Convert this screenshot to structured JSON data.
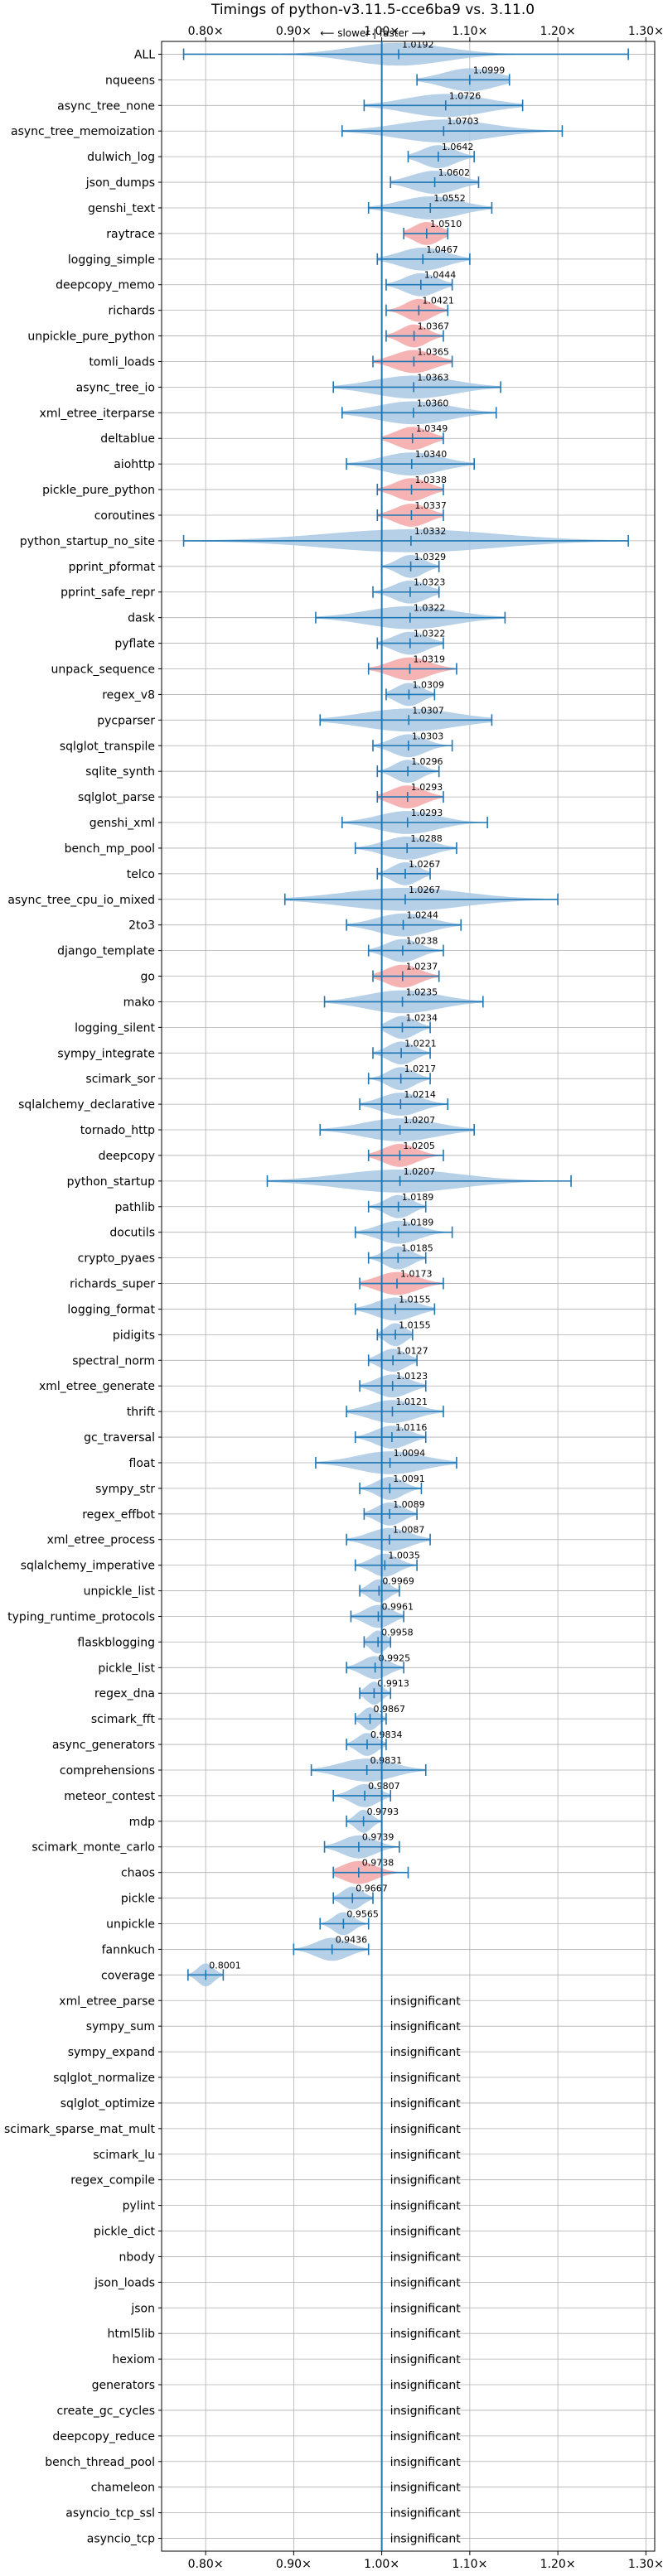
{
  "chart_data": {
    "type": "violin",
    "title": "Timings of python-v3.11.5-cce6ba9 vs. 3.11.0",
    "subtitle": "⟵ slower | faster ⟶",
    "xlabel": "",
    "ylabel": "",
    "xlim": [
      0.75,
      1.31
    ],
    "x_ticks": [
      0.8,
      0.9,
      1.0,
      1.1,
      1.2,
      1.3
    ],
    "x_tick_labels": [
      "0.80×",
      "0.90×",
      "1.00×",
      "1.10×",
      "1.20×",
      "1.30×"
    ],
    "reference_line": 1.0,
    "grid": true,
    "colors": {
      "faster": "#a9c8e4",
      "slower": "#f4a6a6",
      "line": "#1f77b4",
      "grid": "#b0b0b0"
    },
    "insignificant_label": "insignificant",
    "benchmarks": [
      {
        "name": "ALL",
        "value": 1.0192,
        "label": "1.0192",
        "min": 0.775,
        "max": 1.28,
        "spread": 0.07,
        "slower": false
      },
      {
        "name": "nqueens",
        "value": 1.0999,
        "label": "1.0999",
        "min": 1.04,
        "max": 1.145,
        "spread": 0.04,
        "slower": false
      },
      {
        "name": "async_tree_none",
        "value": 1.0726,
        "label": "1.0726",
        "min": 0.98,
        "max": 1.16,
        "spread": 0.06,
        "slower": false
      },
      {
        "name": "async_tree_memoization",
        "value": 1.0703,
        "label": "1.0703",
        "min": 0.955,
        "max": 1.205,
        "spread": 0.07,
        "slower": false
      },
      {
        "name": "dulwich_log",
        "value": 1.0642,
        "label": "1.0642",
        "min": 1.03,
        "max": 1.105,
        "spread": 0.025,
        "slower": false
      },
      {
        "name": "json_dumps",
        "value": 1.0602,
        "label": "1.0602",
        "min": 1.01,
        "max": 1.11,
        "spread": 0.035,
        "slower": false
      },
      {
        "name": "genshi_text",
        "value": 1.0552,
        "label": "1.0552",
        "min": 0.985,
        "max": 1.125,
        "spread": 0.045,
        "slower": false
      },
      {
        "name": "raytrace",
        "value": 1.051,
        "label": "1.0510",
        "min": 1.025,
        "max": 1.075,
        "spread": 0.02,
        "slower": true
      },
      {
        "name": "logging_simple",
        "value": 1.0467,
        "label": "1.0467",
        "min": 0.995,
        "max": 1.1,
        "spread": 0.035,
        "slower": false
      },
      {
        "name": "deepcopy_memo",
        "value": 1.0444,
        "label": "1.0444",
        "min": 1.005,
        "max": 1.08,
        "spread": 0.025,
        "slower": false
      },
      {
        "name": "richards",
        "value": 1.0421,
        "label": "1.0421",
        "min": 1.005,
        "max": 1.075,
        "spread": 0.02,
        "slower": true
      },
      {
        "name": "unpickle_pure_python",
        "value": 1.0367,
        "label": "1.0367",
        "min": 1.005,
        "max": 1.07,
        "spread": 0.02,
        "slower": true
      },
      {
        "name": "tomli_loads",
        "value": 1.0365,
        "label": "1.0365",
        "min": 0.99,
        "max": 1.08,
        "spread": 0.03,
        "slower": true
      },
      {
        "name": "async_tree_io",
        "value": 1.0363,
        "label": "1.0363",
        "min": 0.945,
        "max": 1.135,
        "spread": 0.06,
        "slower": false
      },
      {
        "name": "xml_etree_iterparse",
        "value": 1.036,
        "label": "1.0360",
        "min": 0.955,
        "max": 1.13,
        "spread": 0.055,
        "slower": false
      },
      {
        "name": "deltablue",
        "value": 1.0349,
        "label": "1.0349",
        "min": 1.0,
        "max": 1.07,
        "spread": 0.025,
        "slower": true
      },
      {
        "name": "aiohttp",
        "value": 1.034,
        "label": "1.0340",
        "min": 0.96,
        "max": 1.105,
        "spread": 0.045,
        "slower": false
      },
      {
        "name": "pickle_pure_python",
        "value": 1.0338,
        "label": "1.0338",
        "min": 0.995,
        "max": 1.07,
        "spread": 0.025,
        "slower": true
      },
      {
        "name": "coroutines",
        "value": 1.0337,
        "label": "1.0337",
        "min": 0.995,
        "max": 1.07,
        "spread": 0.025,
        "slower": true
      },
      {
        "name": "python_startup_no_site",
        "value": 1.0332,
        "label": "1.0332",
        "min": 0.775,
        "max": 1.28,
        "spread": 0.13,
        "slower": false
      },
      {
        "name": "pprint_pformat",
        "value": 1.0329,
        "label": "1.0329",
        "min": 1.0,
        "max": 1.065,
        "spread": 0.02,
        "slower": false
      },
      {
        "name": "pprint_safe_repr",
        "value": 1.0323,
        "label": "1.0323",
        "min": 0.99,
        "max": 1.065,
        "spread": 0.025,
        "slower": false
      },
      {
        "name": "dask",
        "value": 1.0322,
        "label": "1.0322",
        "min": 0.925,
        "max": 1.14,
        "spread": 0.065,
        "slower": false
      },
      {
        "name": "pyflate",
        "value": 1.0322,
        "label": "1.0322",
        "min": 0.995,
        "max": 1.07,
        "spread": 0.025,
        "slower": false
      },
      {
        "name": "unpack_sequence",
        "value": 1.0319,
        "label": "1.0319",
        "min": 0.985,
        "max": 1.085,
        "spread": 0.03,
        "slower": true
      },
      {
        "name": "regex_v8",
        "value": 1.0309,
        "label": "1.0309",
        "min": 1.005,
        "max": 1.06,
        "spread": 0.02,
        "slower": false
      },
      {
        "name": "pycparser",
        "value": 1.0307,
        "label": "1.0307",
        "min": 0.93,
        "max": 1.125,
        "spread": 0.07,
        "slower": false
      },
      {
        "name": "sqlglot_transpile",
        "value": 1.0303,
        "label": "1.0303",
        "min": 0.99,
        "max": 1.08,
        "spread": 0.025,
        "slower": false
      },
      {
        "name": "sqlite_synth",
        "value": 1.0296,
        "label": "1.0296",
        "min": 0.995,
        "max": 1.065,
        "spread": 0.02,
        "slower": false
      },
      {
        "name": "sqlglot_parse",
        "value": 1.0293,
        "label": "1.0293",
        "min": 0.995,
        "max": 1.07,
        "spread": 0.025,
        "slower": true
      },
      {
        "name": "genshi_xml",
        "value": 1.0293,
        "label": "1.0293",
        "min": 0.955,
        "max": 1.12,
        "spread": 0.045,
        "slower": false
      },
      {
        "name": "bench_mp_pool",
        "value": 1.0288,
        "label": "1.0288",
        "min": 0.97,
        "max": 1.085,
        "spread": 0.035,
        "slower": false
      },
      {
        "name": "telco",
        "value": 1.0267,
        "label": "1.0267",
        "min": 0.995,
        "max": 1.055,
        "spread": 0.02,
        "slower": false
      },
      {
        "name": "async_tree_cpu_io_mixed",
        "value": 1.0267,
        "label": "1.0267",
        "min": 0.89,
        "max": 1.2,
        "spread": 0.09,
        "slower": false
      },
      {
        "name": "2to3",
        "value": 1.0244,
        "label": "1.0244",
        "min": 0.96,
        "max": 1.09,
        "spread": 0.04,
        "slower": false
      },
      {
        "name": "django_template",
        "value": 1.0238,
        "label": "1.0238",
        "min": 0.985,
        "max": 1.07,
        "spread": 0.025,
        "slower": false
      },
      {
        "name": "go",
        "value": 1.0237,
        "label": "1.0237",
        "min": 0.99,
        "max": 1.065,
        "spread": 0.025,
        "slower": true
      },
      {
        "name": "mako",
        "value": 1.0235,
        "label": "1.0235",
        "min": 0.935,
        "max": 1.115,
        "spread": 0.055,
        "slower": false
      },
      {
        "name": "logging_silent",
        "value": 1.0234,
        "label": "1.0234",
        "min": 1.0,
        "max": 1.055,
        "spread": 0.02,
        "slower": false
      },
      {
        "name": "sympy_integrate",
        "value": 1.0221,
        "label": "1.0221",
        "min": 0.99,
        "max": 1.055,
        "spread": 0.02,
        "slower": false
      },
      {
        "name": "scimark_sor",
        "value": 1.0217,
        "label": "1.0217",
        "min": 0.985,
        "max": 1.055,
        "spread": 0.02,
        "slower": false
      },
      {
        "name": "sqlalchemy_declarative",
        "value": 1.0214,
        "label": "1.0214",
        "min": 0.975,
        "max": 1.075,
        "spread": 0.03,
        "slower": false
      },
      {
        "name": "tornado_http",
        "value": 1.0207,
        "label": "1.0207",
        "min": 0.93,
        "max": 1.105,
        "spread": 0.055,
        "slower": false
      },
      {
        "name": "deepcopy",
        "value": 1.0205,
        "label": "1.0205",
        "min": 0.985,
        "max": 1.07,
        "spread": 0.025,
        "slower": true
      },
      {
        "name": "python_startup",
        "value": 1.0207,
        "label": "1.0207",
        "min": 0.87,
        "max": 1.215,
        "spread": 0.09,
        "slower": false
      },
      {
        "name": "pathlib",
        "value": 1.0189,
        "label": "1.0189",
        "min": 0.985,
        "max": 1.05,
        "spread": 0.02,
        "slower": false
      },
      {
        "name": "docutils",
        "value": 1.0189,
        "label": "1.0189",
        "min": 0.97,
        "max": 1.08,
        "spread": 0.03,
        "slower": false
      },
      {
        "name": "crypto_pyaes",
        "value": 1.0185,
        "label": "1.0185",
        "min": 0.985,
        "max": 1.05,
        "spread": 0.02,
        "slower": false
      },
      {
        "name": "richards_super",
        "value": 1.0173,
        "label": "1.0173",
        "min": 0.975,
        "max": 1.07,
        "spread": 0.03,
        "slower": true
      },
      {
        "name": "logging_format",
        "value": 1.0155,
        "label": "1.0155",
        "min": 0.97,
        "max": 1.06,
        "spread": 0.03,
        "slower": false
      },
      {
        "name": "pidigits",
        "value": 1.0155,
        "label": "1.0155",
        "min": 0.995,
        "max": 1.035,
        "spread": 0.015,
        "slower": false
      },
      {
        "name": "spectral_norm",
        "value": 1.0127,
        "label": "1.0127",
        "min": 0.985,
        "max": 1.04,
        "spread": 0.02,
        "slower": false
      },
      {
        "name": "xml_etree_generate",
        "value": 1.0123,
        "label": "1.0123",
        "min": 0.975,
        "max": 1.05,
        "spread": 0.025,
        "slower": false
      },
      {
        "name": "thrift",
        "value": 1.0121,
        "label": "1.0121",
        "min": 0.96,
        "max": 1.07,
        "spread": 0.035,
        "slower": false
      },
      {
        "name": "gc_traversal",
        "value": 1.0116,
        "label": "1.0116",
        "min": 0.97,
        "max": 1.05,
        "spread": 0.025,
        "slower": false
      },
      {
        "name": "float",
        "value": 1.0094,
        "label": "1.0094",
        "min": 0.925,
        "max": 1.085,
        "spread": 0.05,
        "slower": false
      },
      {
        "name": "sympy_str",
        "value": 1.0091,
        "label": "1.0091",
        "min": 0.975,
        "max": 1.045,
        "spread": 0.02,
        "slower": false
      },
      {
        "name": "regex_effbot",
        "value": 1.0089,
        "label": "1.0089",
        "min": 0.98,
        "max": 1.04,
        "spread": 0.02,
        "slower": false
      },
      {
        "name": "xml_etree_process",
        "value": 1.0087,
        "label": "1.0087",
        "min": 0.96,
        "max": 1.055,
        "spread": 0.03,
        "slower": false
      },
      {
        "name": "sqlalchemy_imperative",
        "value": 1.0035,
        "label": "1.0035",
        "min": 0.97,
        "max": 1.04,
        "spread": 0.02,
        "slower": false
      },
      {
        "name": "unpickle_list",
        "value": 0.9969,
        "label": "0.9969",
        "min": 0.975,
        "max": 1.02,
        "spread": 0.015,
        "slower": false
      },
      {
        "name": "typing_runtime_protocols",
        "value": 0.9961,
        "label": "0.9961",
        "min": 0.965,
        "max": 1.025,
        "spread": 0.02,
        "slower": false
      },
      {
        "name": "flaskblogging",
        "value": 0.9958,
        "label": "0.9958",
        "min": 0.98,
        "max": 1.01,
        "spread": 0.012,
        "slower": false
      },
      {
        "name": "pickle_list",
        "value": 0.9925,
        "label": "0.9925",
        "min": 0.96,
        "max": 1.025,
        "spread": 0.02,
        "slower": false
      },
      {
        "name": "regex_dna",
        "value": 0.9913,
        "label": "0.9913",
        "min": 0.975,
        "max": 1.01,
        "spread": 0.012,
        "slower": false
      },
      {
        "name": "scimark_fft",
        "value": 0.9867,
        "label": "0.9867",
        "min": 0.97,
        "max": 1.005,
        "spread": 0.012,
        "slower": false
      },
      {
        "name": "async_generators",
        "value": 0.9834,
        "label": "0.9834",
        "min": 0.96,
        "max": 1.005,
        "spread": 0.015,
        "slower": false
      },
      {
        "name": "comprehensions",
        "value": 0.9831,
        "label": "0.9831",
        "min": 0.92,
        "max": 1.05,
        "spread": 0.04,
        "slower": false
      },
      {
        "name": "meteor_contest",
        "value": 0.9807,
        "label": "0.9807",
        "min": 0.945,
        "max": 1.01,
        "spread": 0.02,
        "slower": false
      },
      {
        "name": "mdp",
        "value": 0.9793,
        "label": "0.9793",
        "min": 0.96,
        "max": 1.0,
        "spread": 0.012,
        "slower": false
      },
      {
        "name": "scimark_monte_carlo",
        "value": 0.9739,
        "label": "0.9739",
        "min": 0.935,
        "max": 1.02,
        "spread": 0.025,
        "slower": false
      },
      {
        "name": "chaos",
        "value": 0.9738,
        "label": "0.9738",
        "min": 0.945,
        "max": 1.03,
        "spread": 0.025,
        "slower": true
      },
      {
        "name": "pickle",
        "value": 0.9667,
        "label": "0.9667",
        "min": 0.945,
        "max": 0.99,
        "spread": 0.015,
        "slower": false
      },
      {
        "name": "unpickle",
        "value": 0.9565,
        "label": "0.9565",
        "min": 0.93,
        "max": 0.985,
        "spread": 0.015,
        "slower": false
      },
      {
        "name": "fannkuch",
        "value": 0.9436,
        "label": "0.9436",
        "min": 0.9,
        "max": 0.985,
        "spread": 0.025,
        "slower": false
      },
      {
        "name": "coverage",
        "value": 0.8001,
        "label": "0.8001",
        "min": 0.78,
        "max": 0.82,
        "spread": 0.012,
        "slower": false
      },
      {
        "name": "xml_etree_parse",
        "value": null,
        "insignificant": true
      },
      {
        "name": "sympy_sum",
        "value": null,
        "insignificant": true
      },
      {
        "name": "sympy_expand",
        "value": null,
        "insignificant": true
      },
      {
        "name": "sqlglot_normalize",
        "value": null,
        "insignificant": true
      },
      {
        "name": "sqlglot_optimize",
        "value": null,
        "insignificant": true
      },
      {
        "name": "scimark_sparse_mat_mult",
        "value": null,
        "insignificant": true
      },
      {
        "name": "scimark_lu",
        "value": null,
        "insignificant": true
      },
      {
        "name": "regex_compile",
        "value": null,
        "insignificant": true
      },
      {
        "name": "pylint",
        "value": null,
        "insignificant": true
      },
      {
        "name": "pickle_dict",
        "value": null,
        "insignificant": true
      },
      {
        "name": "nbody",
        "value": null,
        "insignificant": true
      },
      {
        "name": "json_loads",
        "value": null,
        "insignificant": true
      },
      {
        "name": "json",
        "value": null,
        "insignificant": true
      },
      {
        "name": "html5lib",
        "value": null,
        "insignificant": true
      },
      {
        "name": "hexiom",
        "value": null,
        "insignificant": true
      },
      {
        "name": "generators",
        "value": null,
        "insignificant": true
      },
      {
        "name": "create_gc_cycles",
        "value": null,
        "insignificant": true
      },
      {
        "name": "deepcopy_reduce",
        "value": null,
        "insignificant": true
      },
      {
        "name": "bench_thread_pool",
        "value": null,
        "insignificant": true
      },
      {
        "name": "chameleon",
        "value": null,
        "insignificant": true
      },
      {
        "name": "asyncio_tcp_ssl",
        "value": null,
        "insignificant": true
      },
      {
        "name": "asyncio_tcp",
        "value": null,
        "insignificant": true
      }
    ]
  }
}
